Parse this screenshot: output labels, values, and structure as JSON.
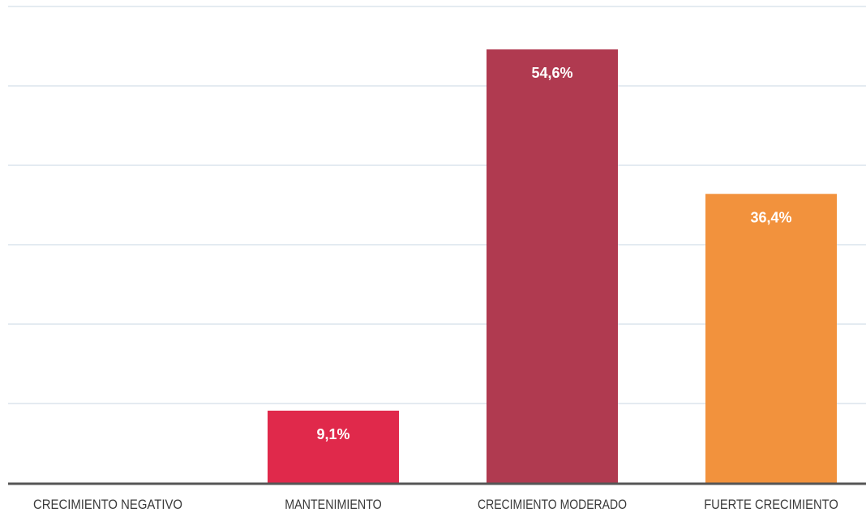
{
  "chart_data": {
    "type": "bar",
    "categories": [
      "CRECIMIENTO NEGATIVO",
      "MANTENIMIENTO",
      "CRECIMIENTO MODERADO",
      "FUERTE CRECIMIENTO"
    ],
    "values": [
      0,
      9.1,
      54.6,
      36.4
    ],
    "value_labels": [
      "",
      "9,1%",
      "54,6%",
      "36,4%"
    ],
    "colors": [
      "#e0294b",
      "#e0294b",
      "#b03a50",
      "#f2923d"
    ],
    "ylim": [
      0,
      60
    ],
    "grid": true,
    "gridline_count": 6,
    "gridline_color": "#c9d7e3",
    "axis_color": "#555555"
  }
}
